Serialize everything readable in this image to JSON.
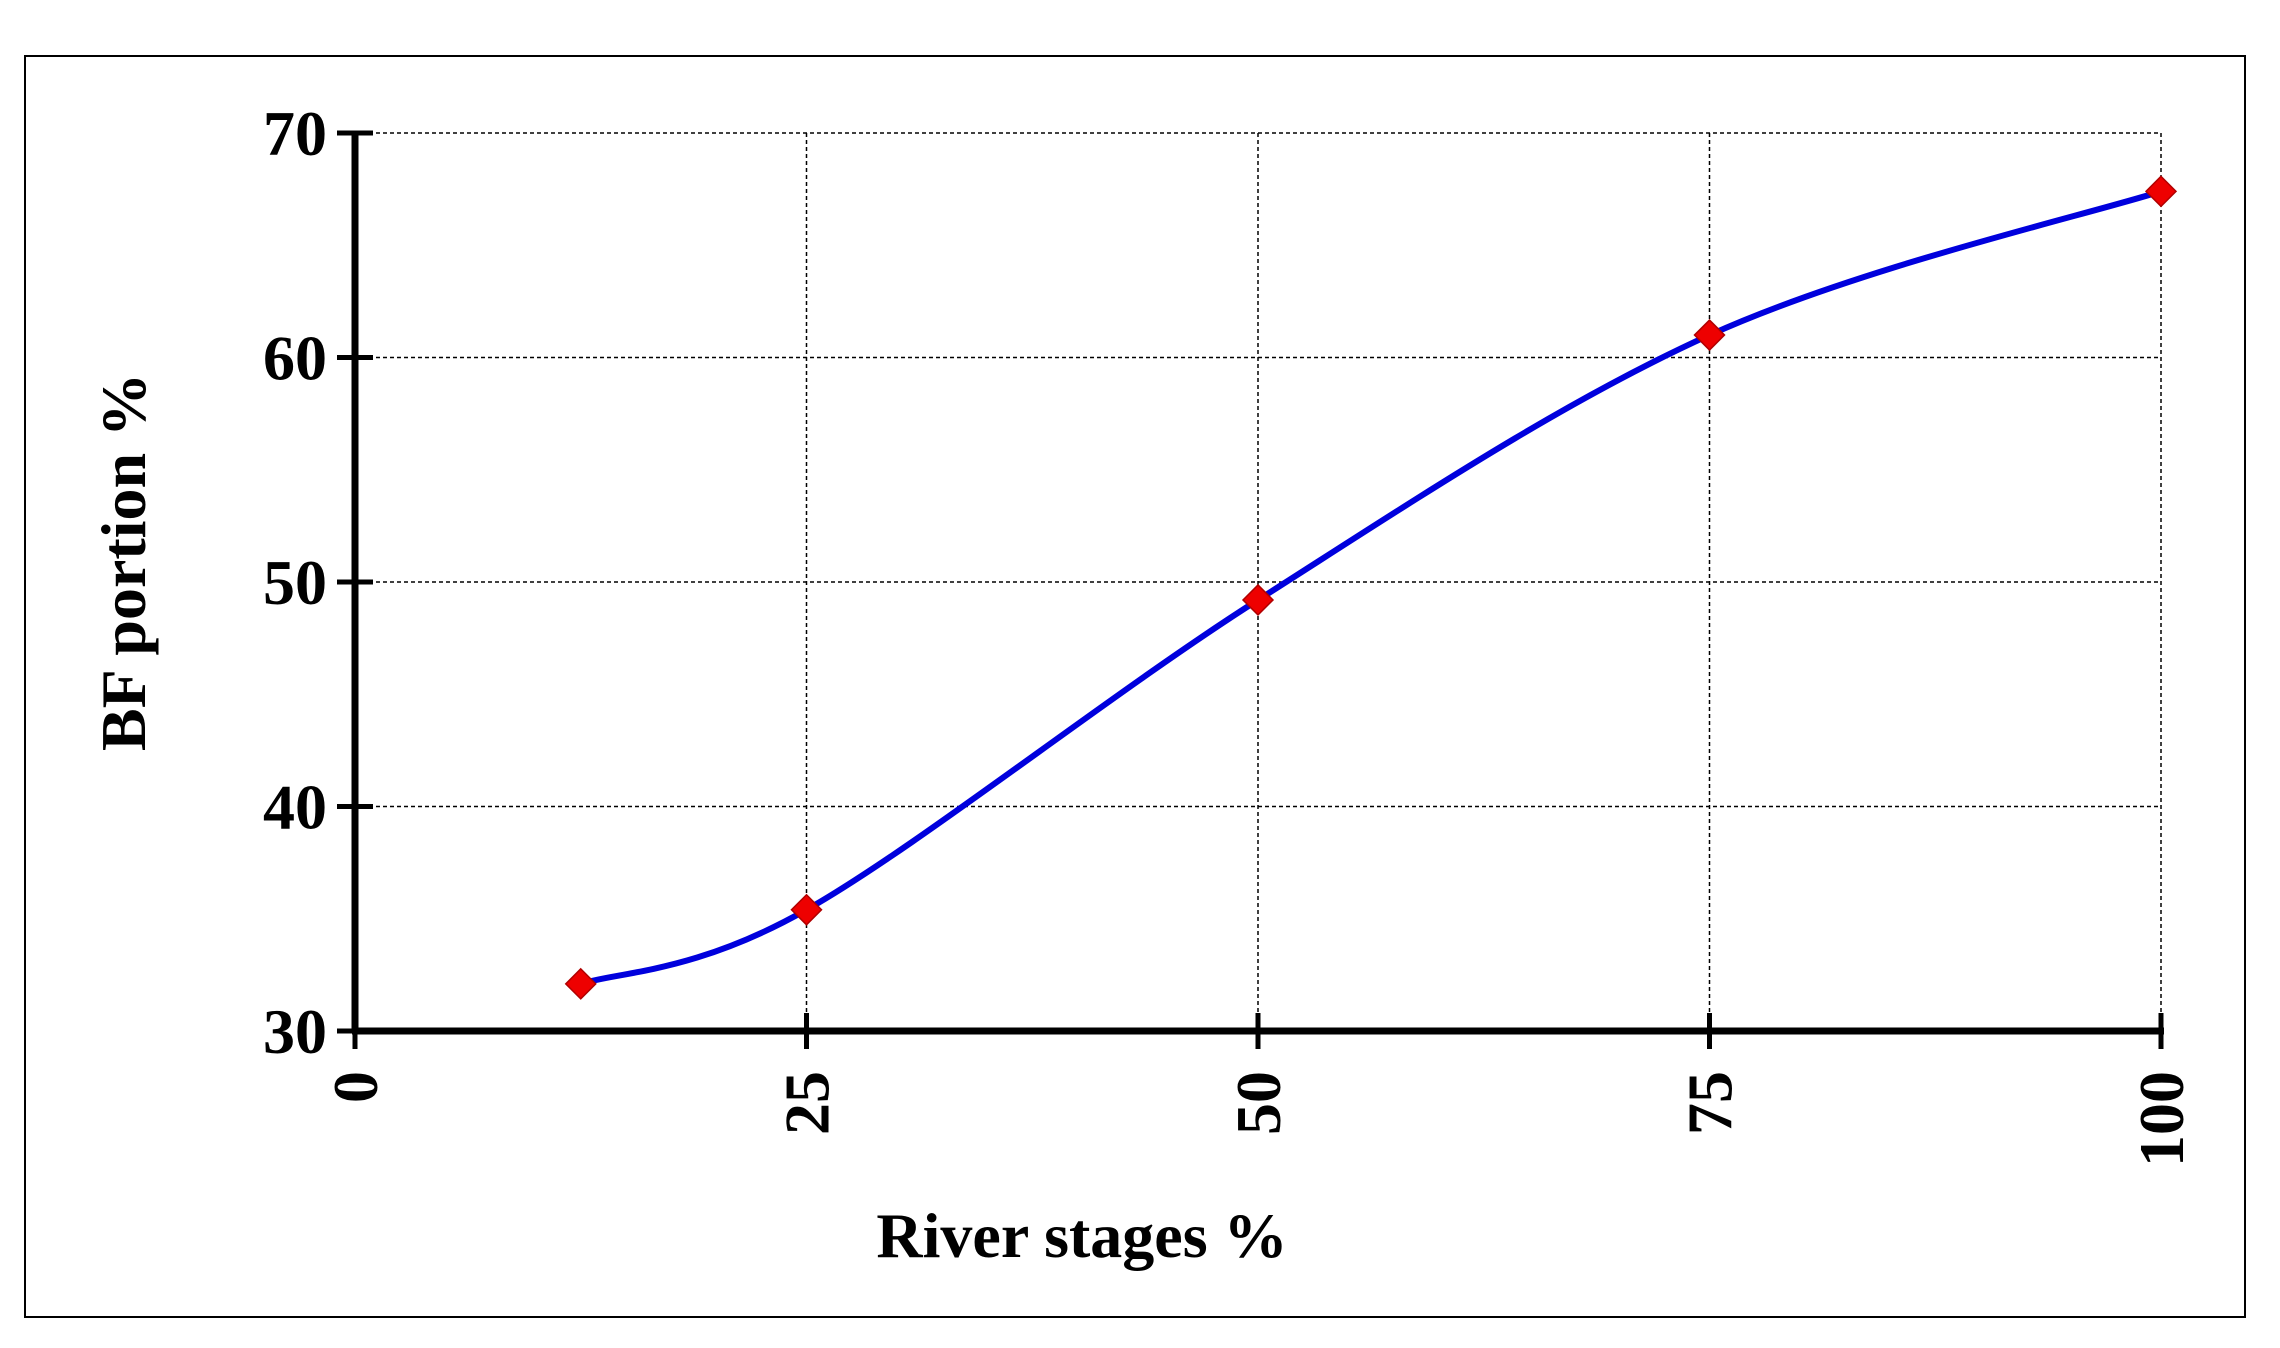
{
  "chart_data": {
    "type": "line",
    "title": "",
    "xlabel": "River stages %",
    "ylabel": "BF portion %",
    "xlim": [
      0,
      100
    ],
    "ylim": [
      30,
      70
    ],
    "x_ticks": [
      0,
      25,
      50,
      75,
      100
    ],
    "y_ticks": [
      30,
      40,
      50,
      60,
      70
    ],
    "grid": true,
    "legend": "none",
    "smooth": true,
    "series": [
      {
        "x": [
          12.5,
          25,
          50,
          75,
          100
        ],
        "y": [
          32.1,
          35.4,
          49.2,
          61.0,
          67.4
        ],
        "line_color": "#0000DD",
        "marker": "diamond",
        "marker_color": "#EE0000"
      }
    ]
  }
}
